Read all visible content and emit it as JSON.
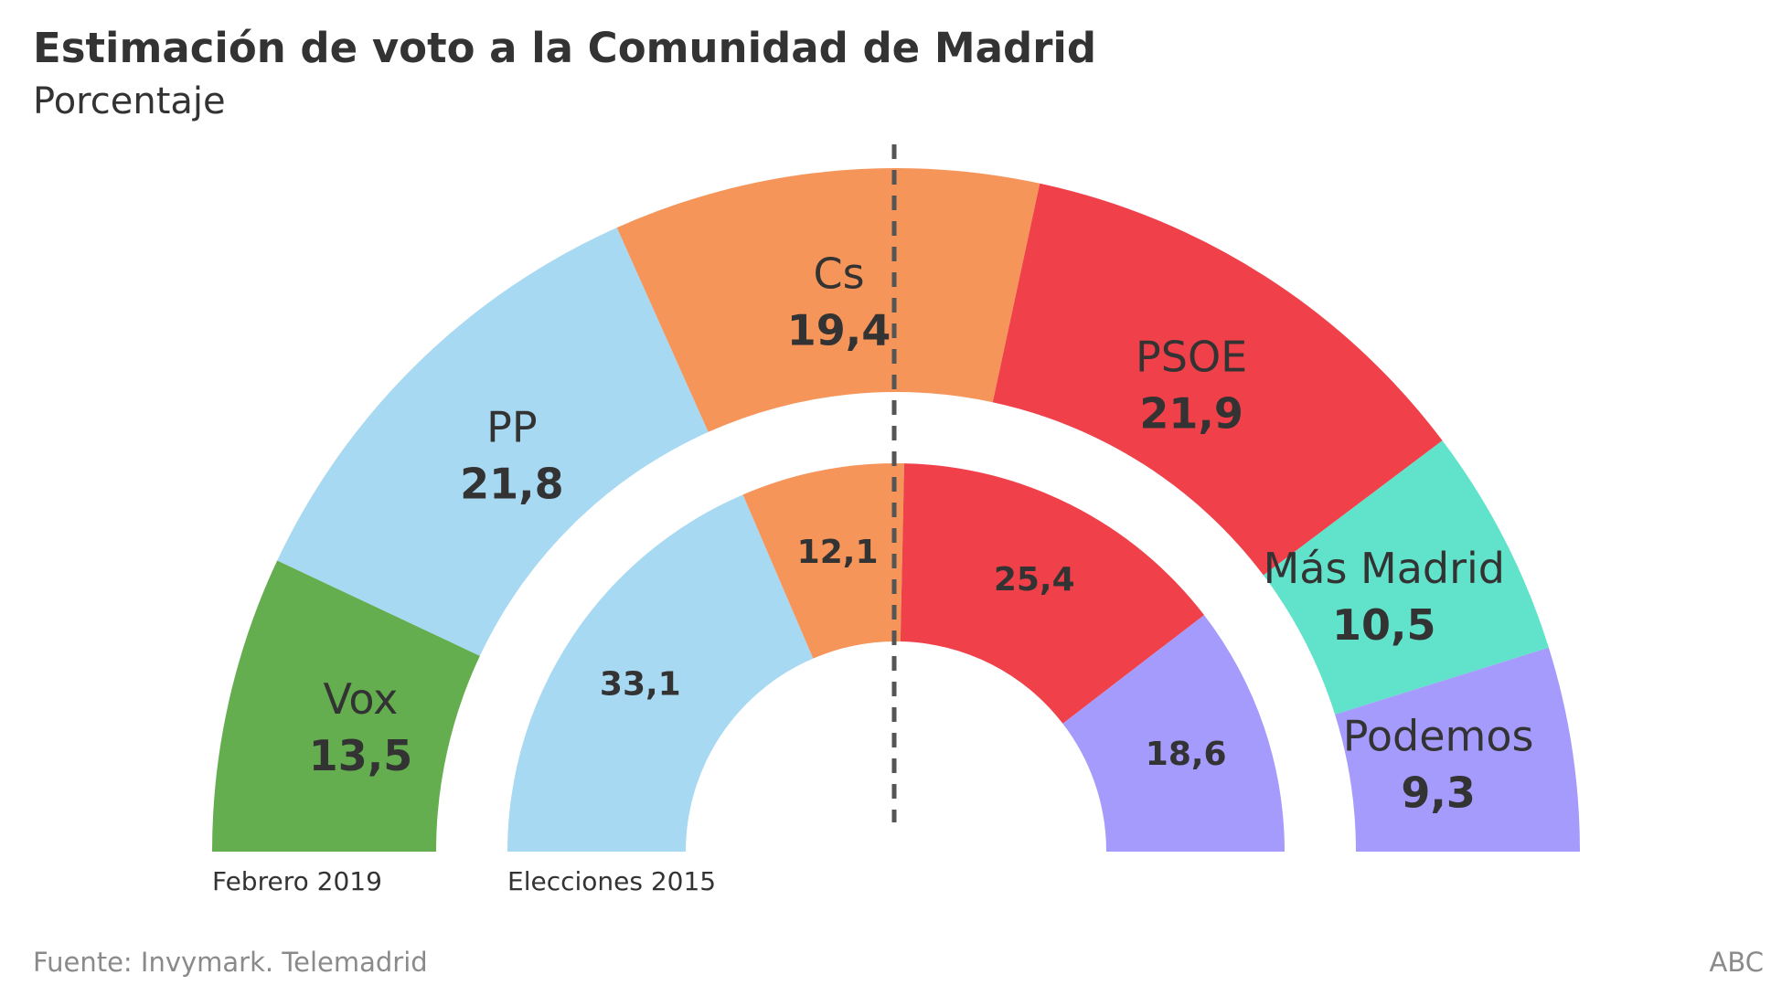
{
  "title": "Estimación de voto a la Comunidad de Madrid",
  "subtitle": "Porcentaje",
  "source": "Fuente: Invymark. Telemadrid",
  "brand": "ABC",
  "chart_data": [
    {
      "type": "pie",
      "variant": "half-donut",
      "title": "Estimación de voto a la Comunidad de Madrid",
      "subtitle": "Porcentaje",
      "ring": "outer",
      "series_label": "Febrero 2019",
      "categories": [
        "Vox",
        "PP",
        "Cs",
        "PSOE",
        "Más Madrid",
        "Podemos"
      ],
      "values": [
        13.5,
        21.8,
        19.4,
        21.9,
        10.5,
        9.3
      ],
      "value_labels": [
        "13,5",
        "21,8",
        "19,4",
        "21,9",
        "10,5",
        "9,3"
      ],
      "colors": [
        "#64ae50",
        "#a8d9f2",
        "#f5955a",
        "#f0414a",
        "#61e2ca",
        "#a59bfd"
      ]
    },
    {
      "type": "pie",
      "variant": "half-donut",
      "ring": "inner",
      "series_label": "Elecciones 2015",
      "categories": [
        "PP",
        "Cs",
        "PSOE",
        "Podemos"
      ],
      "values": [
        33.1,
        12.1,
        25.4,
        18.6
      ],
      "value_labels": [
        "33,1",
        "12,1",
        "25,4",
        "18,6"
      ],
      "colors": [
        "#a8d9f2",
        "#f5955a",
        "#f0414a",
        "#a59bfd"
      ]
    }
  ],
  "divider_color": "#555555"
}
